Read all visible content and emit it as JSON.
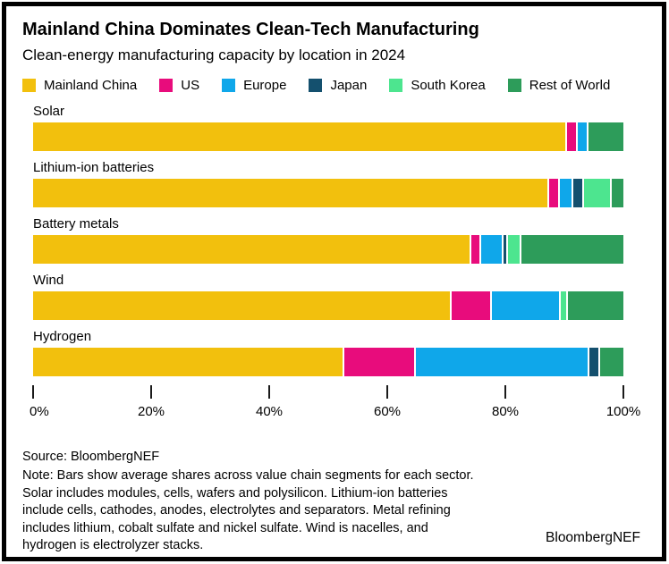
{
  "header": {
    "title": "Mainland China Dominates Clean-Tech Manufacturing",
    "subtitle": "Clean-energy manufacturing capacity by location in 2024"
  },
  "legend": [
    {
      "label": "Mainland China",
      "color": "#F2C00D"
    },
    {
      "label": "US",
      "color": "#E80C7C"
    },
    {
      "label": "Europe",
      "color": "#0FA7EA"
    },
    {
      "label": "Japan",
      "color": "#14506E"
    },
    {
      "label": "South Korea",
      "color": "#4DE58F"
    },
    {
      "label": "Rest of World",
      "color": "#2D9C5A"
    }
  ],
  "chart_data": {
    "type": "bar",
    "stacked": true,
    "orientation": "horizontal",
    "title": "Clean-energy manufacturing capacity by location in 2024",
    "categories": [
      "Solar",
      "Lithium-ion batteries",
      "Battery metals",
      "Wind",
      "Hydrogen"
    ],
    "series": [
      {
        "name": "Mainland China",
        "color": "#F2C00D",
        "values": [
          91,
          88.5,
          75,
          71.5,
          53
        ]
      },
      {
        "name": "US",
        "color": "#E80C7C",
        "values": [
          1.5,
          1.5,
          1.5,
          6.5,
          12
        ]
      },
      {
        "name": "Europe",
        "color": "#0FA7EA",
        "values": [
          1.5,
          2,
          3.5,
          11.5,
          29.5
        ]
      },
      {
        "name": "Japan",
        "color": "#14506E",
        "values": [
          0,
          1.5,
          0.5,
          0,
          1.5
        ]
      },
      {
        "name": "South Korea",
        "color": "#4DE58F",
        "values": [
          0,
          4.5,
          2,
          1,
          0
        ]
      },
      {
        "name": "Rest of World",
        "color": "#2D9C5A",
        "values": [
          6,
          2,
          17.5,
          9.5,
          4
        ]
      }
    ],
    "x_ticks": [
      {
        "label": "0%",
        "value": 0
      },
      {
        "label": "20%",
        "value": 20
      },
      {
        "label": "40%",
        "value": 40
      },
      {
        "label": "60%",
        "value": 60
      },
      {
        "label": "80%",
        "value": 80
      },
      {
        "label": "100%",
        "value": 100
      }
    ],
    "xlim": [
      0,
      100
    ],
    "grid": false,
    "legend_position": "top"
  },
  "footer": {
    "source": "Source: BloombergNEF",
    "note": "Note: Bars show average shares across value chain segments for each sector.\nSolar includes modules, cells, wafers and polysilicon. Lithium-ion batteries\ninclude cells, cathodes, anodes, electrolytes and separators. Metal refining\nincludes lithium, cobalt sulfate and nickel sulfate. Wind is nacelles, and\nhydrogen is electrolyzer stacks.",
    "brand": "BloombergNEF"
  }
}
